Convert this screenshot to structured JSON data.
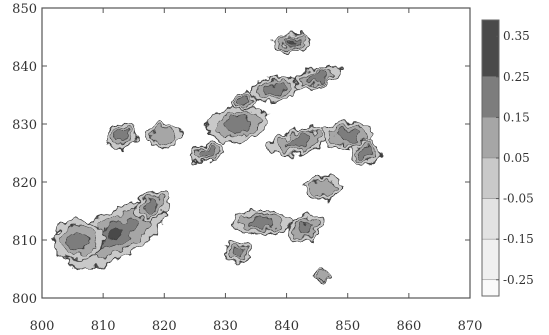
{
  "chart_data": {
    "type": "heatmap",
    "title": "",
    "xlabel": "",
    "ylabel": "",
    "xlim": [
      800,
      870
    ],
    "ylim": [
      800,
      850
    ],
    "grid": false,
    "x_ticks": [
      "800",
      "810",
      "820",
      "830",
      "840",
      "850",
      "860",
      "870"
    ],
    "y_ticks": [
      "800",
      "810",
      "820",
      "830",
      "840",
      "850"
    ],
    "colorbar": {
      "position": "right",
      "levels": [
        "0.35",
        "0.25",
        "0.15",
        "0.05",
        "-0.05",
        "-0.15",
        "-0.25"
      ],
      "bands": [
        {
          "from": 0.25,
          "to": 0.39,
          "color": "#4a4a4a"
        },
        {
          "from": 0.15,
          "to": 0.25,
          "color": "#7d7d7d"
        },
        {
          "from": 0.05,
          "to": 0.15,
          "color": "#a6a6a6"
        },
        {
          "from": -0.05,
          "to": 0.05,
          "color": "#c9c9c9"
        },
        {
          "from": -0.15,
          "to": -0.05,
          "color": "#e2e2e2"
        },
        {
          "from": -0.25,
          "to": -0.15,
          "color": "#f0f0f0"
        },
        {
          "from": -0.29,
          "to": -0.25,
          "color": "#fafafa"
        }
      ]
    },
    "regions": [
      {
        "x": 812,
        "y": 811,
        "rx": 9,
        "ry": 4,
        "angle": 28,
        "level": 0.3
      },
      {
        "x": 806,
        "y": 810,
        "rx": 4,
        "ry": 3.5,
        "angle": 0,
        "level": 0.25
      },
      {
        "x": 818,
        "y": 816,
        "rx": 3,
        "ry": 2,
        "angle": 30,
        "level": 0.2
      },
      {
        "x": 813,
        "y": 828,
        "rx": 2.5,
        "ry": 2,
        "angle": 20,
        "level": 0.2
      },
      {
        "x": 820,
        "y": 828,
        "rx": 3,
        "ry": 2,
        "angle": 0,
        "level": 0.15
      },
      {
        "x": 827,
        "y": 825,
        "rx": 3,
        "ry": 1.5,
        "angle": 20,
        "level": 0.2
      },
      {
        "x": 832,
        "y": 830,
        "rx": 5,
        "ry": 3,
        "angle": 10,
        "level": 0.25
      },
      {
        "x": 838,
        "y": 836,
        "rx": 4,
        "ry": 2,
        "angle": 10,
        "level": 0.25
      },
      {
        "x": 841,
        "y": 844,
        "rx": 3,
        "ry": 1.5,
        "angle": 0,
        "level": 0.3
      },
      {
        "x": 845,
        "y": 838,
        "rx": 4,
        "ry": 1.5,
        "angle": 20,
        "level": 0.2
      },
      {
        "x": 842,
        "y": 827,
        "rx": 5,
        "ry": 2,
        "angle": 15,
        "level": 0.25
      },
      {
        "x": 850,
        "y": 828,
        "rx": 4,
        "ry": 2.5,
        "angle": 0,
        "level": 0.2
      },
      {
        "x": 853,
        "y": 825,
        "rx": 2.5,
        "ry": 2,
        "angle": 0,
        "level": 0.2
      },
      {
        "x": 836,
        "y": 813,
        "rx": 5,
        "ry": 2,
        "angle": 0,
        "level": 0.25
      },
      {
        "x": 843,
        "y": 812,
        "rx": 3,
        "ry": 2,
        "angle": 30,
        "level": 0.2
      },
      {
        "x": 832,
        "y": 808,
        "rx": 2,
        "ry": 2,
        "angle": 0,
        "level": 0.2
      },
      {
        "x": 846,
        "y": 819,
        "rx": 3,
        "ry": 2,
        "angle": 0,
        "level": 0.15
      },
      {
        "x": 833,
        "y": 834,
        "rx": 2,
        "ry": 1.5,
        "angle": 0,
        "level": 0.2
      },
      {
        "x": 846,
        "y": 804,
        "rx": 1.5,
        "ry": 1,
        "angle": 0,
        "level": 0.15
      }
    ]
  }
}
